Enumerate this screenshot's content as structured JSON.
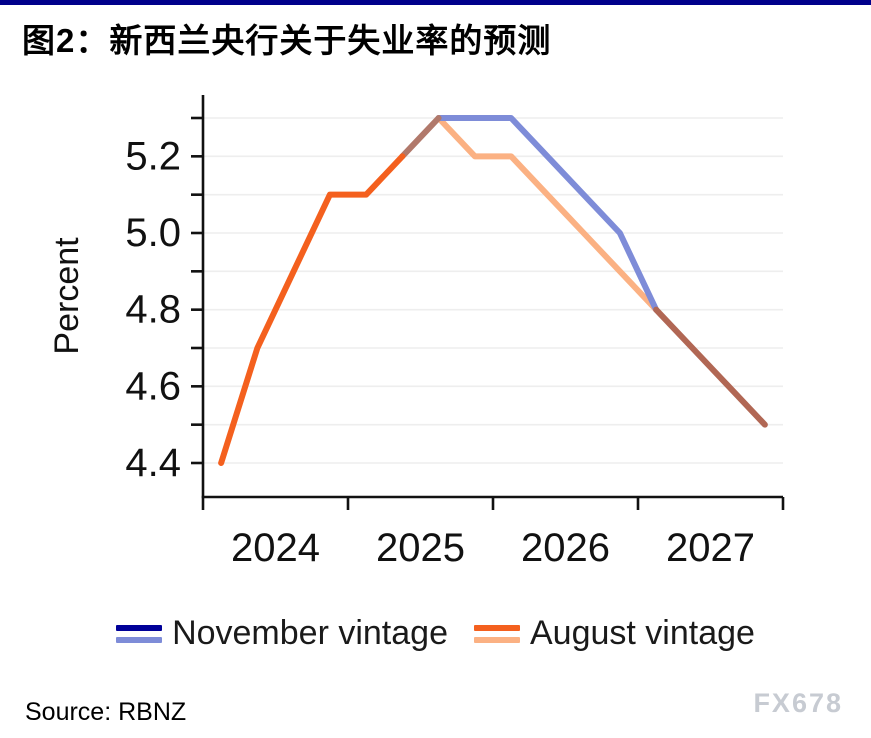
{
  "header": {
    "title": "图2：新西兰央行关于失业率的预测"
  },
  "footer": {
    "source": "Source: RBNZ",
    "watermark": "FX678"
  },
  "colors": {
    "top_bar": "#00008B",
    "axis": "#111111",
    "gridline": "#EEEEEE",
    "tick_text": "#111111",
    "watermark": "#C7CBD2"
  },
  "chart_data": {
    "type": "line",
    "title": "图2：新西兰央行关于失业率的预测",
    "xlabel": "",
    "ylabel": "Percent",
    "x_quarters": [
      "2024Q1",
      "2024Q2",
      "2024Q3",
      "2024Q4",
      "2025Q1",
      "2025Q2",
      "2025Q3",
      "2025Q4",
      "2026Q1",
      "2026Q2",
      "2026Q3",
      "2026Q4",
      "2027Q1",
      "2027Q2",
      "2027Q3",
      "2027Q4"
    ],
    "x_tick_years": [
      "2024",
      "2025",
      "2026",
      "2027"
    ],
    "y_tick_labels": [
      "4.4",
      "4.6",
      "4.8",
      "5.0",
      "5.2"
    ],
    "y_gridlines": [
      4.4,
      4.5,
      4.6,
      4.7,
      4.8,
      4.9,
      5.0,
      5.1,
      5.2,
      5.3
    ],
    "ylim": [
      4.31,
      5.36
    ],
    "grid": "horizontal",
    "legend_position": "bottom",
    "series": [
      {
        "name": "November vintage",
        "colors": {
          "actual": "#000099",
          "forecast": "#7E8CD8"
        },
        "forecast_starts_after": "2025Q3",
        "values": [
          4.4,
          4.7,
          4.9,
          5.1,
          5.1,
          5.2,
          5.3,
          5.3,
          5.3,
          5.2,
          5.1,
          5.0,
          4.8,
          4.7,
          4.6,
          4.5
        ]
      },
      {
        "name": "August vintage",
        "colors": {
          "actual": "#F4601E",
          "forecast": "#FBB183"
        },
        "forecast_starts_after": "2025Q2",
        "values": [
          4.4,
          4.7,
          4.9,
          5.1,
          5.1,
          5.2,
          5.3,
          5.2,
          5.2,
          5.1,
          5.0,
          4.9,
          4.8,
          4.7,
          4.6,
          4.5
        ]
      }
    ],
    "legend": [
      {
        "label": "November vintage",
        "colors": [
          "#000099",
          "#7E8CD8"
        ]
      },
      {
        "label": "August vintage",
        "colors": [
          "#F4601E",
          "#FBB183"
        ]
      }
    ],
    "render_segments": [
      {
        "name": "august-forecast",
        "color": "#FBB183",
        "start_quarter": 6,
        "values": [
          5.3,
          5.2,
          5.2,
          5.1,
          5.0,
          4.9,
          4.8
        ]
      },
      {
        "name": "november-forecast",
        "color": "#7E8CD8",
        "start_quarter": 6,
        "values": [
          5.3,
          5.3,
          5.3,
          5.2,
          5.1,
          5.0,
          4.8
        ]
      },
      {
        "name": "overlap-rise",
        "color": "#B1796B",
        "start_quarter": 5,
        "values": [
          5.2,
          5.3
        ]
      },
      {
        "name": "overlap-decline",
        "color": "#B16754",
        "start_quarter": 12,
        "values": [
          4.8,
          4.7,
          4.6,
          4.5
        ]
      },
      {
        "name": "actuals-shared",
        "color": "#F4601E",
        "start_quarter": 0,
        "values": [
          4.4,
          4.7,
          4.9,
          5.1,
          5.1,
          5.2
        ]
      }
    ]
  }
}
